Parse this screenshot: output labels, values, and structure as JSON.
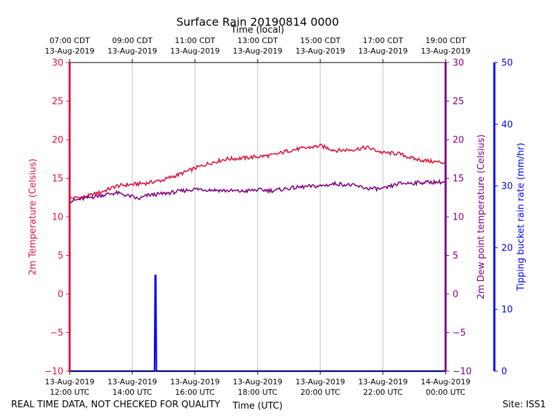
{
  "chart_data": {
    "type": "line",
    "title": "Surface Rain 20190814 0000",
    "top_axis_label": "Time (local)",
    "bottom_axis_label": "Time (UTC)",
    "top_ticks": [
      {
        "x": 12,
        "line1": "07:00 CDT",
        "line2": "13-Aug-2019"
      },
      {
        "x": 14,
        "line1": "09:00 CDT",
        "line2": "13-Aug-2019"
      },
      {
        "x": 16,
        "line1": "11:00 CDT",
        "line2": "13-Aug-2019"
      },
      {
        "x": 18,
        "line1": "13:00 CDT",
        "line2": "13-Aug-2019"
      },
      {
        "x": 20,
        "line1": "15:00 CDT",
        "line2": "13-Aug-2019"
      },
      {
        "x": 22,
        "line1": "17:00 CDT",
        "line2": "13-Aug-2019"
      },
      {
        "x": 24,
        "line1": "19:00 CDT",
        "line2": "13-Aug-2019"
      }
    ],
    "bottom_ticks": [
      {
        "x": 12,
        "line1": "13-Aug-2019",
        "line2": "12:00 UTC"
      },
      {
        "x": 14,
        "line1": "13-Aug-2019",
        "line2": "14:00 UTC"
      },
      {
        "x": 16,
        "line1": "13-Aug-2019",
        "line2": "16:00 UTC"
      },
      {
        "x": 18,
        "line1": "13-Aug-2019",
        "line2": "18:00 UTC"
      },
      {
        "x": 20,
        "line1": "13-Aug-2019",
        "line2": "20:00 UTC"
      },
      {
        "x": 22,
        "line1": "13-Aug-2019",
        "line2": "22:00 UTC"
      },
      {
        "x": 24,
        "line1": "14-Aug-2019",
        "line2": "00:00 UTC"
      }
    ],
    "xlim": [
      12,
      24
    ],
    "y_left": {
      "label": "2m Temperature (Celsius)",
      "ylim": [
        -10,
        30
      ],
      "ticks": [
        -10,
        -5,
        0,
        5,
        10,
        15,
        20,
        25,
        30
      ],
      "color": "#dc143c"
    },
    "y_right1": {
      "label": "2m Dew point temperature (Celsius)",
      "ylim": [
        -10,
        30
      ],
      "ticks": [
        -10,
        -5,
        0,
        5,
        10,
        15,
        20,
        25,
        30
      ],
      "color": "#800080"
    },
    "y_right2": {
      "label": "Tipping bucket rain rate (mm/hr)",
      "ylim": [
        0,
        50
      ],
      "ticks": [
        0,
        10,
        20,
        30,
        40,
        50
      ],
      "color": "#0000ff"
    },
    "series": [
      {
        "name": "2m Temperature",
        "axis": "left",
        "color": "#dc143c",
        "x": [
          12.0,
          12.5,
          13.0,
          13.5,
          14.0,
          14.5,
          15.0,
          15.5,
          16.0,
          16.5,
          17.0,
          17.5,
          18.0,
          18.5,
          19.0,
          19.5,
          20.0,
          20.5,
          21.0,
          21.5,
          22.0,
          22.5,
          23.0,
          23.5,
          24.0
        ],
        "values": [
          12.4,
          12.6,
          13.2,
          14.0,
          14.2,
          14.4,
          14.8,
          15.5,
          16.3,
          17.0,
          17.5,
          17.6,
          17.8,
          18.0,
          18.6,
          18.9,
          19.2,
          18.6,
          18.7,
          19.0,
          18.3,
          18.2,
          17.5,
          17.2,
          17.0
        ]
      },
      {
        "name": "2m Dew point temperature",
        "axis": "right1",
        "color": "#800080",
        "x": [
          12.0,
          12.5,
          13.0,
          13.5,
          14.0,
          14.2,
          14.5,
          15.0,
          15.5,
          16.0,
          16.5,
          17.0,
          17.5,
          18.0,
          18.5,
          19.0,
          19.5,
          20.0,
          20.5,
          21.0,
          21.5,
          22.0,
          22.5,
          23.0,
          23.5,
          24.0
        ],
        "values": [
          12.0,
          12.4,
          12.8,
          13.1,
          12.6,
          12.3,
          12.8,
          13.0,
          13.3,
          13.6,
          13.5,
          13.4,
          13.3,
          13.5,
          13.4,
          13.7,
          13.9,
          14.0,
          14.3,
          14.1,
          13.7,
          13.6,
          14.3,
          14.4,
          14.5,
          14.5
        ]
      },
      {
        "name": "Tipping bucket rain rate",
        "axis": "right2",
        "color": "#0000ff",
        "x": [
          12.0,
          14.71,
          14.73,
          14.75,
          14.77,
          24.0
        ],
        "values": [
          0,
          0,
          15.5,
          15.5,
          0,
          0
        ]
      }
    ]
  },
  "footer": {
    "quality_note": "REAL TIME DATA, NOT CHECKED FOR QUALITY",
    "site": "Site: ISS1"
  }
}
